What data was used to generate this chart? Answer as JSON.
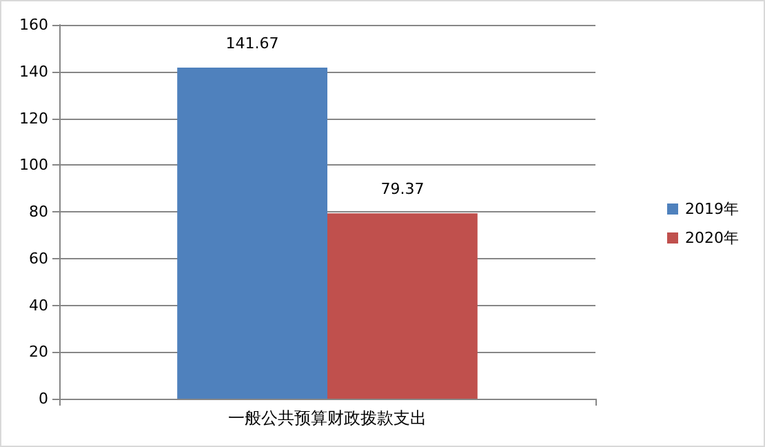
{
  "chart_data": {
    "type": "bar",
    "categories": [
      "一般公共预算财政拨款支出"
    ],
    "series": [
      {
        "name": "2019年",
        "color": "#4f81bd",
        "values": [
          141.67
        ]
      },
      {
        "name": "2020年",
        "color": "#c0504d",
        "values": [
          79.37
        ]
      }
    ],
    "ylim": [
      0,
      160
    ],
    "yticks": [
      0,
      20,
      40,
      60,
      80,
      100,
      120,
      140,
      160
    ],
    "grid": "y",
    "legend": "right",
    "data_labels": true
  }
}
